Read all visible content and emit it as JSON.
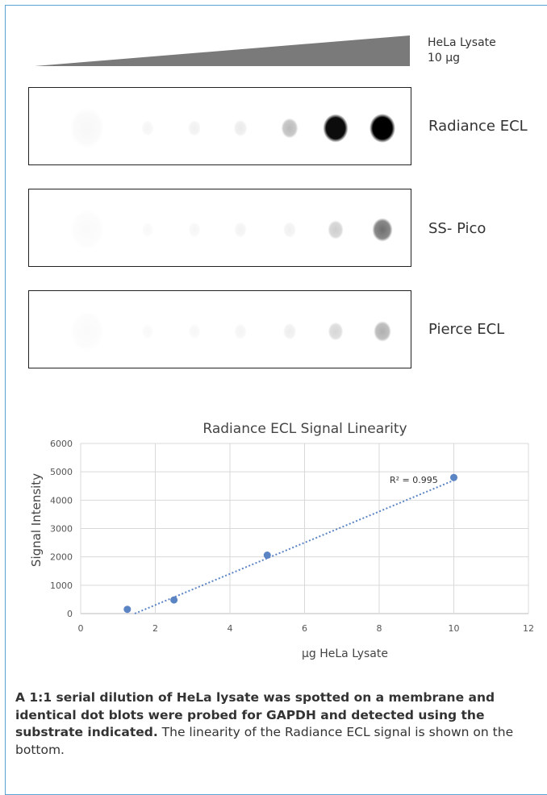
{
  "header": {
    "lysate_label_line1": "HeLa Lysate",
    "lysate_label_line2": "10 µg"
  },
  "blots": [
    {
      "name": "Radiance ECL",
      "spot_intensities": [
        0.03,
        0.06,
        0.1,
        0.14,
        0.38,
        0.95,
        1.0
      ]
    },
    {
      "name": "SS- Pico",
      "spot_intensities": [
        0.0,
        0.02,
        0.05,
        0.08,
        0.1,
        0.3,
        0.62
      ]
    },
    {
      "name": "Pierce ECL",
      "spot_intensities": [
        0.0,
        0.02,
        0.04,
        0.07,
        0.12,
        0.26,
        0.42
      ]
    }
  ],
  "chart_data": {
    "type": "scatter",
    "title": "Radiance ECL Signal Linearity",
    "xlabel": "µg HeLa Lysate",
    "ylabel": "Signal Intensity",
    "xlim": [
      0,
      12
    ],
    "ylim": [
      0,
      6000
    ],
    "x_ticks": [
      "0",
      "2",
      "4",
      "6",
      "8",
      "10",
      "12"
    ],
    "y_ticks": [
      "0",
      "1000",
      "2000",
      "3000",
      "4000",
      "5000",
      "6000"
    ],
    "grid": true,
    "points": [
      {
        "x": 1.25,
        "y": 150
      },
      {
        "x": 2.5,
        "y": 480
      },
      {
        "x": 5,
        "y": 2060
      },
      {
        "x": 10,
        "y": 4800
      }
    ],
    "trendline": {
      "style": "dotted",
      "x_start": 1.45,
      "x_end": 10,
      "y_start": 0,
      "y_end": 4700
    },
    "annotation": "R² = 0.995",
    "point_color": "#5b84c4"
  },
  "caption": {
    "bold_text": "A 1:1 serial dilution of HeLa lysate was spotted on a membrane and identical dot blots were probed for GAPDH and detected using the substrate indicated.",
    "normal_text": " The linearity of the Radiance ECL signal is shown on the bottom."
  }
}
